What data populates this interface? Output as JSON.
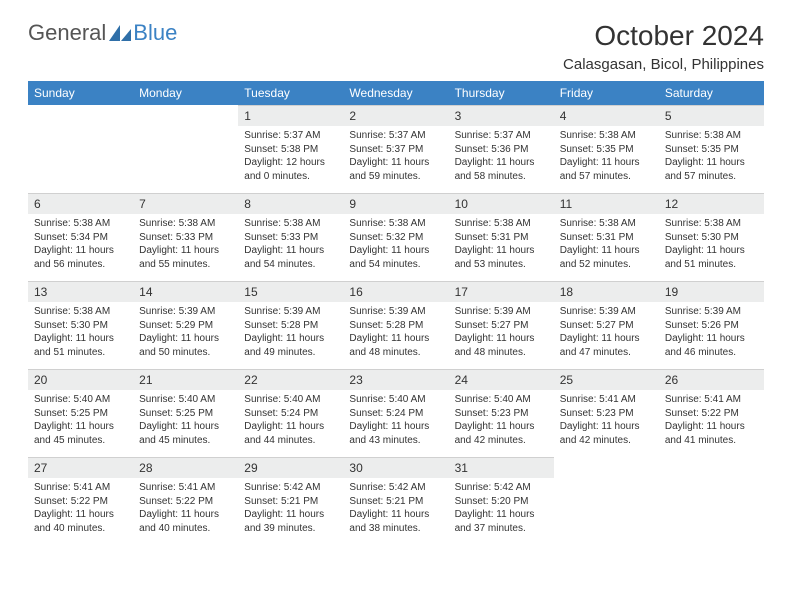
{
  "brand": {
    "text_general": "General",
    "text_blue": "Blue",
    "icon_color": "#2f6fa8"
  },
  "header": {
    "month_title": "October 2024",
    "location": "Calasgasan, Bicol, Philippines"
  },
  "theme": {
    "header_bg": "#3b82c4",
    "header_text": "#ffffff",
    "daynum_bg": "#eceded",
    "text_color": "#333333",
    "body_bg": "#ffffff",
    "font_family": "Arial, Helvetica, sans-serif",
    "title_fontsize": 28,
    "location_fontsize": 15,
    "dayheader_fontsize": 12,
    "daycontent_fontsize": 10
  },
  "day_headers": [
    "Sunday",
    "Monday",
    "Tuesday",
    "Wednesday",
    "Thursday",
    "Friday",
    "Saturday"
  ],
  "leading_blanks": 2,
  "days": [
    {
      "n": 1,
      "sunrise": "5:37 AM",
      "sunset": "5:38 PM",
      "daylight": "12 hours and 0 minutes."
    },
    {
      "n": 2,
      "sunrise": "5:37 AM",
      "sunset": "5:37 PM",
      "daylight": "11 hours and 59 minutes."
    },
    {
      "n": 3,
      "sunrise": "5:37 AM",
      "sunset": "5:36 PM",
      "daylight": "11 hours and 58 minutes."
    },
    {
      "n": 4,
      "sunrise": "5:38 AM",
      "sunset": "5:35 PM",
      "daylight": "11 hours and 57 minutes."
    },
    {
      "n": 5,
      "sunrise": "5:38 AM",
      "sunset": "5:35 PM",
      "daylight": "11 hours and 57 minutes."
    },
    {
      "n": 6,
      "sunrise": "5:38 AM",
      "sunset": "5:34 PM",
      "daylight": "11 hours and 56 minutes."
    },
    {
      "n": 7,
      "sunrise": "5:38 AM",
      "sunset": "5:33 PM",
      "daylight": "11 hours and 55 minutes."
    },
    {
      "n": 8,
      "sunrise": "5:38 AM",
      "sunset": "5:33 PM",
      "daylight": "11 hours and 54 minutes."
    },
    {
      "n": 9,
      "sunrise": "5:38 AM",
      "sunset": "5:32 PM",
      "daylight": "11 hours and 54 minutes."
    },
    {
      "n": 10,
      "sunrise": "5:38 AM",
      "sunset": "5:31 PM",
      "daylight": "11 hours and 53 minutes."
    },
    {
      "n": 11,
      "sunrise": "5:38 AM",
      "sunset": "5:31 PM",
      "daylight": "11 hours and 52 minutes."
    },
    {
      "n": 12,
      "sunrise": "5:38 AM",
      "sunset": "5:30 PM",
      "daylight": "11 hours and 51 minutes."
    },
    {
      "n": 13,
      "sunrise": "5:38 AM",
      "sunset": "5:30 PM",
      "daylight": "11 hours and 51 minutes."
    },
    {
      "n": 14,
      "sunrise": "5:39 AM",
      "sunset": "5:29 PM",
      "daylight": "11 hours and 50 minutes."
    },
    {
      "n": 15,
      "sunrise": "5:39 AM",
      "sunset": "5:28 PM",
      "daylight": "11 hours and 49 minutes."
    },
    {
      "n": 16,
      "sunrise": "5:39 AM",
      "sunset": "5:28 PM",
      "daylight": "11 hours and 48 minutes."
    },
    {
      "n": 17,
      "sunrise": "5:39 AM",
      "sunset": "5:27 PM",
      "daylight": "11 hours and 48 minutes."
    },
    {
      "n": 18,
      "sunrise": "5:39 AM",
      "sunset": "5:27 PM",
      "daylight": "11 hours and 47 minutes."
    },
    {
      "n": 19,
      "sunrise": "5:39 AM",
      "sunset": "5:26 PM",
      "daylight": "11 hours and 46 minutes."
    },
    {
      "n": 20,
      "sunrise": "5:40 AM",
      "sunset": "5:25 PM",
      "daylight": "11 hours and 45 minutes."
    },
    {
      "n": 21,
      "sunrise": "5:40 AM",
      "sunset": "5:25 PM",
      "daylight": "11 hours and 45 minutes."
    },
    {
      "n": 22,
      "sunrise": "5:40 AM",
      "sunset": "5:24 PM",
      "daylight": "11 hours and 44 minutes."
    },
    {
      "n": 23,
      "sunrise": "5:40 AM",
      "sunset": "5:24 PM",
      "daylight": "11 hours and 43 minutes."
    },
    {
      "n": 24,
      "sunrise": "5:40 AM",
      "sunset": "5:23 PM",
      "daylight": "11 hours and 42 minutes."
    },
    {
      "n": 25,
      "sunrise": "5:41 AM",
      "sunset": "5:23 PM",
      "daylight": "11 hours and 42 minutes."
    },
    {
      "n": 26,
      "sunrise": "5:41 AM",
      "sunset": "5:22 PM",
      "daylight": "11 hours and 41 minutes."
    },
    {
      "n": 27,
      "sunrise": "5:41 AM",
      "sunset": "5:22 PM",
      "daylight": "11 hours and 40 minutes."
    },
    {
      "n": 28,
      "sunrise": "5:41 AM",
      "sunset": "5:22 PM",
      "daylight": "11 hours and 40 minutes."
    },
    {
      "n": 29,
      "sunrise": "5:42 AM",
      "sunset": "5:21 PM",
      "daylight": "11 hours and 39 minutes."
    },
    {
      "n": 30,
      "sunrise": "5:42 AM",
      "sunset": "5:21 PM",
      "daylight": "11 hours and 38 minutes."
    },
    {
      "n": 31,
      "sunrise": "5:42 AM",
      "sunset": "5:20 PM",
      "daylight": "11 hours and 37 minutes."
    }
  ],
  "labels": {
    "sunrise_prefix": "Sunrise: ",
    "sunset_prefix": "Sunset: ",
    "daylight_prefix": "Daylight: "
  }
}
